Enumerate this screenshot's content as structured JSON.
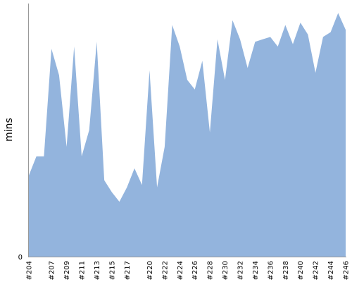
{
  "chart_data": {
    "type": "area",
    "title": "",
    "xlabel": "",
    "ylabel": "mins",
    "grid": false,
    "legend": "none",
    "ylim": [
      0,
      106
    ],
    "y_tick_labels": [
      "0"
    ],
    "x_tick_labels": [
      "#204",
      "#207",
      "#209",
      "#211",
      "#213",
      "#215",
      "#217",
      "#220",
      "#222",
      "#224",
      "#226",
      "#228",
      "#230",
      "#232",
      "#234",
      "#236",
      "#238",
      "#240",
      "#242",
      "#244",
      "#246"
    ],
    "colors": {
      "fill": "#93B4DD",
      "axis": "#999999"
    },
    "series": [
      {
        "x": [
          "#204",
          "#205",
          "#206",
          "#207",
          "#208",
          "#209",
          "#210",
          "#211",
          "#212",
          "#213",
          "#214",
          "#215",
          "#216",
          "#217",
          "#218",
          "#219",
          "#220",
          "#221",
          "#222",
          "#223",
          "#224",
          "#225",
          "#226",
          "#227",
          "#228",
          "#229",
          "#230",
          "#231",
          "#232",
          "#233",
          "#234",
          "#235",
          "#236",
          "#237",
          "#238",
          "#239",
          "#240",
          "#241",
          "#242",
          "#243",
          "#244",
          "#245",
          "#246"
        ],
        "values": [
          34,
          42,
          42,
          87,
          76,
          46,
          88,
          42,
          53,
          90,
          32,
          27,
          23,
          29,
          37,
          30,
          78,
          29,
          46,
          97,
          88,
          74,
          70,
          82,
          52,
          91,
          74,
          99,
          91,
          79,
          90,
          91,
          92,
          88,
          97,
          89,
          98,
          93,
          77,
          92,
          94,
          102,
          95
        ]
      }
    ]
  }
}
